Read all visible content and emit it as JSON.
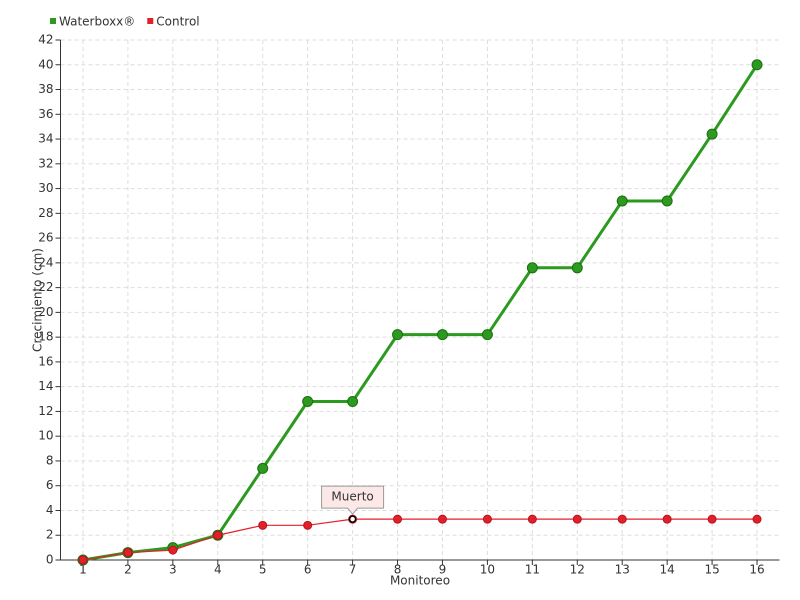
{
  "chart_data": {
    "type": "line",
    "y_label": "Crecimiento (cm)",
    "x_label": "Monitoreo",
    "categories": [
      "1",
      "2",
      "3",
      "4",
      "5",
      "6",
      "7",
      "8",
      "9",
      "10",
      "11",
      "12",
      "13",
      "14",
      "15",
      "16"
    ],
    "series": [
      {
        "name": "Waterboxx®",
        "color": "#2b9a1e",
        "values": [
          0,
          0.6,
          1.0,
          2.0,
          7.4,
          12.8,
          12.8,
          18.2,
          18.2,
          18.2,
          23.6,
          23.6,
          29.0,
          29.0,
          34.4,
          40.0
        ]
      },
      {
        "name": "Control",
        "color": "#e3202a",
        "values": [
          0,
          0.6,
          0.8,
          2.0,
          2.8,
          2.8,
          3.3,
          3.3,
          3.3,
          3.3,
          3.3,
          3.3,
          3.3,
          3.3,
          3.3,
          3.3
        ]
      }
    ],
    "annotations": [
      {
        "text": "Muerto",
        "series": "Control",
        "category": "7"
      }
    ],
    "ylim": [
      0,
      42
    ],
    "yticks": [
      0,
      2,
      4,
      6,
      8,
      10,
      12,
      14,
      16,
      18,
      20,
      22,
      24,
      26,
      28,
      30,
      32,
      34,
      36,
      38,
      40,
      42
    ],
    "grid": true,
    "legend": "top-left"
  }
}
